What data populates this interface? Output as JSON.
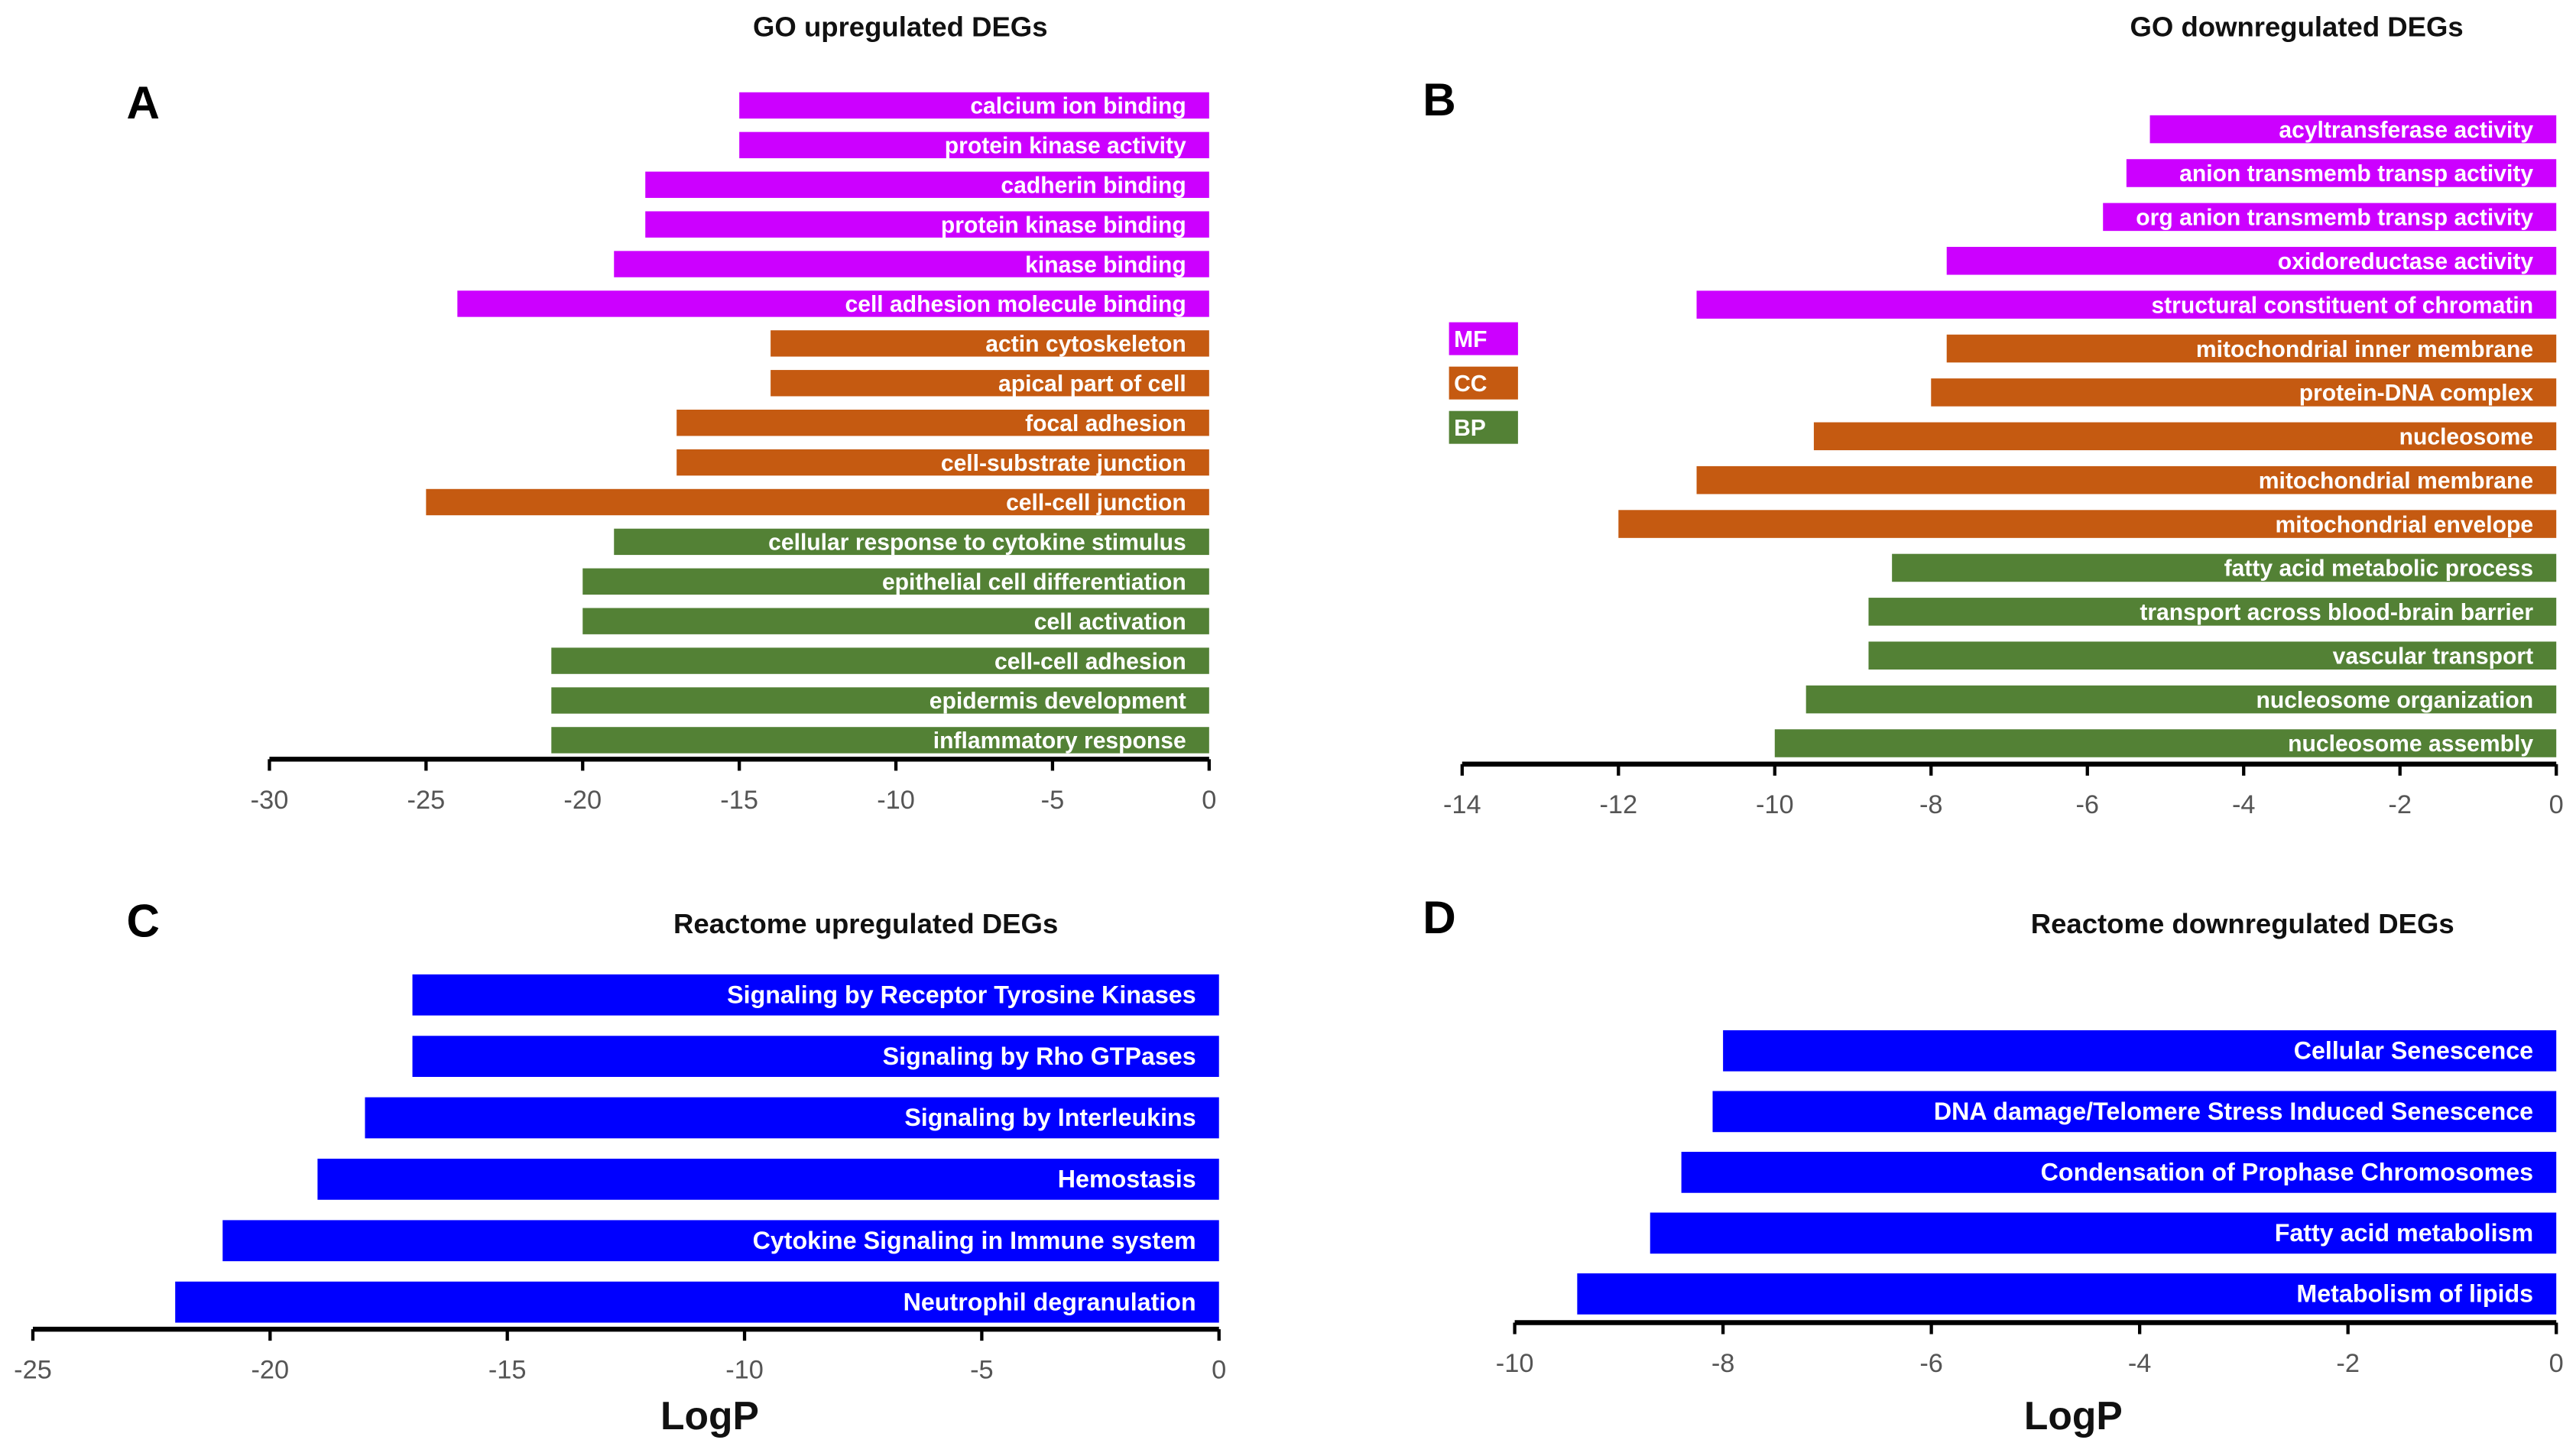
{
  "colors": {
    "MF": "#cc00ff",
    "CC": "#c55a11",
    "BP": "#538135",
    "reactome": "#0000ff"
  },
  "chart_data": [
    {
      "id": "A",
      "type": "bar",
      "orientation": "horizontal",
      "title": "GO upregulated DEGs",
      "panel_letter": "A",
      "xlabel": "",
      "xlim": [
        -30,
        0
      ],
      "xticks": [
        -30,
        -25,
        -20,
        -15,
        -10,
        -5,
        0
      ],
      "bars": [
        {
          "label": "calcium ion binding",
          "value": -15,
          "group": "MF"
        },
        {
          "label": "protein kinase activity",
          "value": -15,
          "group": "MF"
        },
        {
          "label": "cadherin binding",
          "value": -18,
          "group": "MF"
        },
        {
          "label": "protein kinase binding",
          "value": -18,
          "group": "MF"
        },
        {
          "label": "kinase binding",
          "value": -19,
          "group": "MF"
        },
        {
          "label": "cell adhesion molecule binding",
          "value": -24,
          "group": "MF"
        },
        {
          "label": "actin cytoskeleton",
          "value": -14,
          "group": "CC"
        },
        {
          "label": "apical part of cell",
          "value": -14,
          "group": "CC"
        },
        {
          "label": "focal adhesion",
          "value": -17,
          "group": "CC"
        },
        {
          "label": "cell-substrate junction",
          "value": -17,
          "group": "CC"
        },
        {
          "label": "cell-cell junction",
          "value": -25,
          "group": "CC"
        },
        {
          "label": "cellular response to cytokine stimulus",
          "value": -19,
          "group": "BP"
        },
        {
          "label": "epithelial cell differentiation",
          "value": -20,
          "group": "BP"
        },
        {
          "label": "cell activation",
          "value": -20,
          "group": "BP"
        },
        {
          "label": "cell-cell adhesion",
          "value": -21,
          "group": "BP"
        },
        {
          "label": "epidermis development",
          "value": -21,
          "group": "BP"
        },
        {
          "label": "inflammatory response",
          "value": -21,
          "group": "BP"
        }
      ]
    },
    {
      "id": "B",
      "type": "bar",
      "orientation": "horizontal",
      "title": "GO downregulated DEGs",
      "panel_letter": "B",
      "xlabel": "",
      "xlim": [
        -14,
        0
      ],
      "xticks": [
        -14,
        -12,
        -10,
        -8,
        -6,
        -4,
        -2,
        0
      ],
      "legend": [
        "MF",
        "CC",
        "BP"
      ],
      "legend_position": "left",
      "bars": [
        {
          "label": "acyltransferase activity",
          "value": -5.2,
          "group": "MF"
        },
        {
          "label": "anion transmemb transp activity",
          "value": -5.5,
          "group": "MF"
        },
        {
          "label": "org anion transmemb transp activity",
          "value": -5.8,
          "group": "MF"
        },
        {
          "label": "oxidoreductase activity",
          "value": -7.8,
          "group": "MF"
        },
        {
          "label": "structural constituent of chromatin",
          "value": -11,
          "group": "MF"
        },
        {
          "label": "mitochondrial inner membrane",
          "value": -7.8,
          "group": "CC"
        },
        {
          "label": "protein-DNA complex",
          "value": -8,
          "group": "CC"
        },
        {
          "label": "nucleosome",
          "value": -9.5,
          "group": "CC"
        },
        {
          "label": "mitochondrial membrane",
          "value": -11,
          "group": "CC"
        },
        {
          "label": "mitochondrial envelope",
          "value": -12,
          "group": "CC"
        },
        {
          "label": "fatty acid metabolic process",
          "value": -8.5,
          "group": "BP"
        },
        {
          "label": "transport across blood-brain barrier",
          "value": -8.8,
          "group": "BP"
        },
        {
          "label": "vascular transport",
          "value": -8.8,
          "group": "BP"
        },
        {
          "label": "nucleosome organization",
          "value": -9.6,
          "group": "BP"
        },
        {
          "label": "nucleosome assembly",
          "value": -10,
          "group": "BP"
        }
      ]
    },
    {
      "id": "C",
      "type": "bar",
      "orientation": "horizontal",
      "title": "Reactome upregulated DEGs",
      "panel_letter": "C",
      "xlabel": "LogP",
      "xlim": [
        -25,
        0
      ],
      "xticks": [
        -25,
        -20,
        -15,
        -10,
        -5,
        0
      ],
      "bars": [
        {
          "label": "Signaling by Receptor Tyrosine Kinases",
          "value": -17,
          "group": "reactome"
        },
        {
          "label": "Signaling by Rho GTPases",
          "value": -17,
          "group": "reactome"
        },
        {
          "label": "Signaling by Interleukins",
          "value": -18,
          "group": "reactome"
        },
        {
          "label": "Hemostasis",
          "value": -19,
          "group": "reactome"
        },
        {
          "label": "Cytokine Signaling in Immune system",
          "value": -21,
          "group": "reactome"
        },
        {
          "label": "Neutrophil degranulation",
          "value": -22,
          "group": "reactome"
        }
      ]
    },
    {
      "id": "D",
      "type": "bar",
      "orientation": "horizontal",
      "title": "Reactome downregulated DEGs",
      "panel_letter": "D",
      "xlabel": "LogP",
      "xlim": [
        -10,
        0
      ],
      "xticks": [
        -10,
        -8,
        -6,
        -4,
        -2,
        0
      ],
      "bars": [
        {
          "label": "Cellular Senescence",
          "value": -8,
          "group": "reactome"
        },
        {
          "label": "DNA damage/Telomere Stress Induced Senescence",
          "value": -8.1,
          "group": "reactome"
        },
        {
          "label": "Condensation of Prophase Chromosomes",
          "value": -8.4,
          "group": "reactome"
        },
        {
          "label": "Fatty acid metabolism",
          "value": -8.7,
          "group": "reactome"
        },
        {
          "label": "Metabolism of lipids",
          "value": -9.4,
          "group": "reactome"
        }
      ]
    }
  ]
}
